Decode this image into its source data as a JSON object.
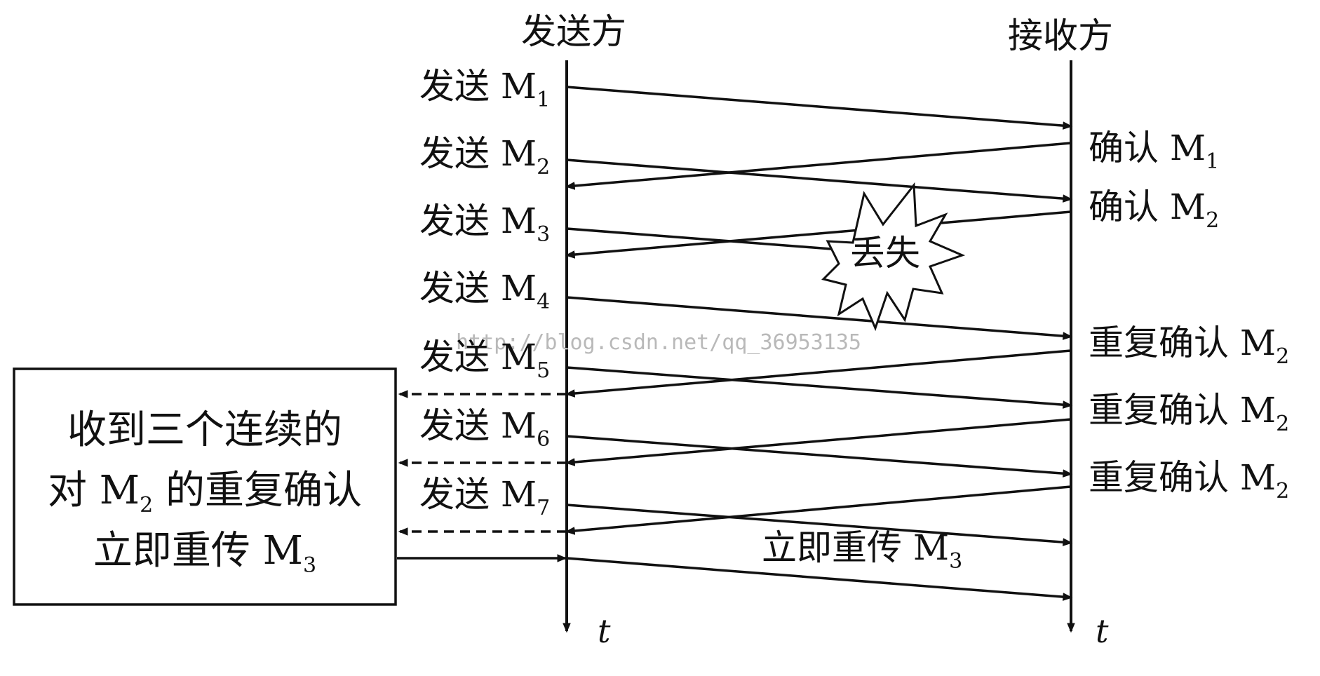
{
  "headers": {
    "sender": "发送方",
    "receiver": "接收方"
  },
  "send_labels": [
    {
      "text": "发送 M",
      "sub": "1"
    },
    {
      "text": "发送 M",
      "sub": "2"
    },
    {
      "text": "发送 M",
      "sub": "3"
    },
    {
      "text": "发送 M",
      "sub": "4"
    },
    {
      "text": "发送 M",
      "sub": "5"
    },
    {
      "text": "发送 M",
      "sub": "6"
    },
    {
      "text": "发送 M",
      "sub": "7"
    }
  ],
  "ack_labels": [
    {
      "text": "确认 M",
      "sub": "1"
    },
    {
      "text": "确认 M",
      "sub": "2"
    },
    {
      "text": "重复确认 M",
      "sub": "2"
    },
    {
      "text": "重复确认 M",
      "sub": "2"
    },
    {
      "text": "重复确认 M",
      "sub": "2"
    }
  ],
  "lost_label": "丢失",
  "retransmit_label": {
    "text": "立即重传 M",
    "sub": "3"
  },
  "box": {
    "line1": "收到三个连续的",
    "line2_prefix": "对 M",
    "line2_sub": "2",
    "line2_suffix": " 的重复确认",
    "line3": "立即重传 M",
    "line3_sub": "3"
  },
  "time_axis": {
    "sender": "t",
    "receiver": "t"
  },
  "watermark": "http://blog.csdn.net/qq_36953135"
}
